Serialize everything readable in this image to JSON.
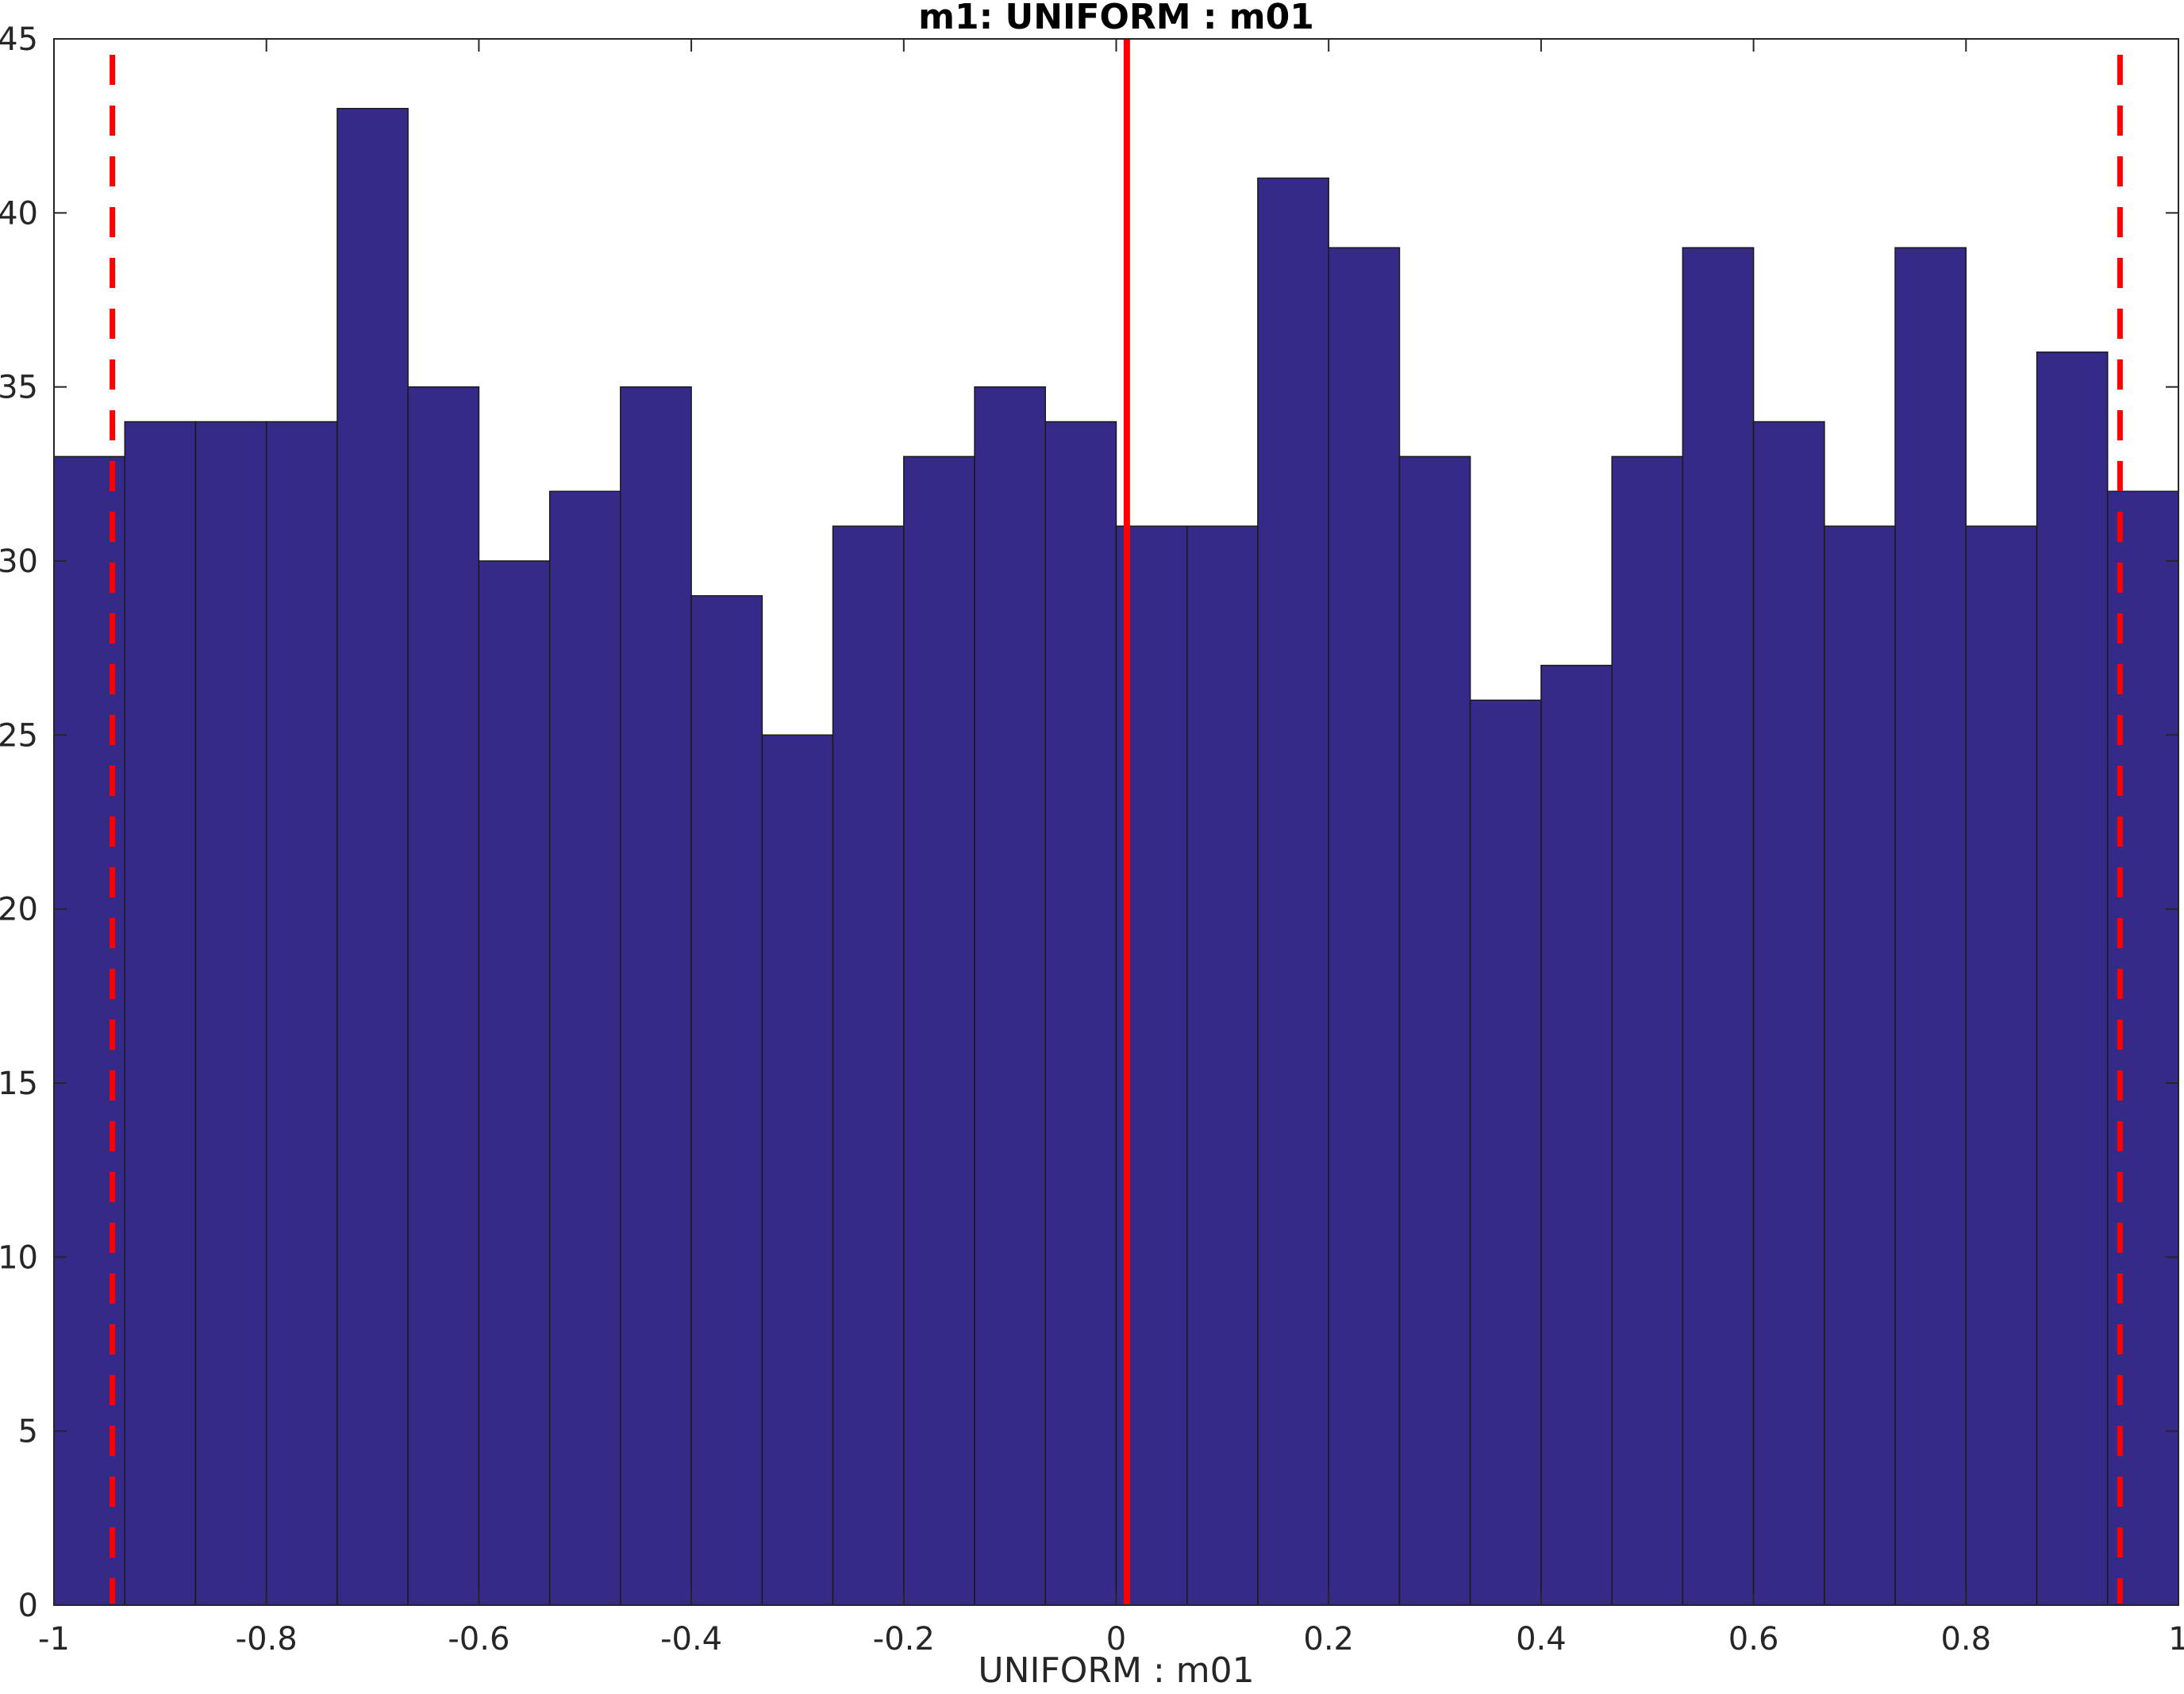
{
  "chart_data": {
    "type": "bar",
    "title": "m1: UNIFORM : m01",
    "xlabel": "UNIFORM : m01",
    "ylabel": "",
    "xlim": [
      -1,
      1
    ],
    "ylim": [
      0,
      45
    ],
    "bin_edges": [
      -1,
      -0.9333,
      -0.8667,
      -0.8,
      -0.7333,
      -0.6667,
      -0.6,
      -0.5333,
      -0.4667,
      -0.4,
      -0.3333,
      -0.2667,
      -0.2,
      -0.1333,
      -0.0667,
      0,
      0.0667,
      0.1333,
      0.2,
      0.2667,
      0.3333,
      0.4,
      0.4667,
      0.5333,
      0.6,
      0.6667,
      0.7333,
      0.8,
      0.8667,
      0.9333,
      1
    ],
    "values": [
      33,
      34,
      34,
      34,
      43,
      35,
      30,
      32,
      35,
      29,
      25,
      31,
      33,
      35,
      34,
      31,
      31,
      41,
      39,
      33,
      26,
      27,
      33,
      39,
      34,
      31,
      39,
      31,
      36,
      32
    ],
    "x_ticks": [
      -1,
      -0.8,
      -0.6,
      -0.4,
      -0.2,
      0,
      0.2,
      0.4,
      0.6,
      0.8,
      1
    ],
    "x_tick_labels": [
      "-1",
      "-0.8",
      "-0.6",
      "-0.4",
      "-0.2",
      "0",
      "0.2",
      "0.4",
      "0.6",
      "0.8",
      "1"
    ],
    "y_ticks": [
      0,
      5,
      10,
      15,
      20,
      25,
      30,
      35,
      40,
      45
    ],
    "y_tick_labels": [
      "0",
      "5",
      "10",
      "15",
      "20",
      "25",
      "30",
      "35",
      "40",
      "45"
    ],
    "reference_lines": [
      {
        "x": 0.01,
        "style": "solid",
        "color": "#ff0000"
      },
      {
        "x": -0.945,
        "style": "dashed",
        "color": "#ff0000"
      },
      {
        "x": 0.945,
        "style": "dashed",
        "color": "#ff0000"
      }
    ],
    "bar_color": "#352a87",
    "grid": false
  }
}
